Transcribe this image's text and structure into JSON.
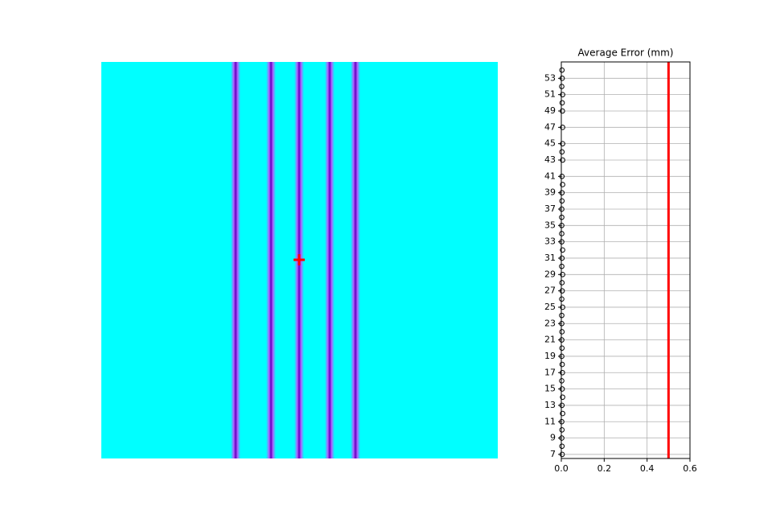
{
  "chart_data": {
    "type": "scatter",
    "title": "Average Error (mm)",
    "x": [
      0.004,
      0.003,
      0.002,
      0.003,
      0.002,
      0.003,
      0.006,
      0.004,
      0.005,
      0.004,
      0.002,
      0.002,
      0.003,
      0.002,
      0.006,
      0.004,
      0.006,
      0.003,
      0.002,
      0.002,
      0.002,
      0.002,
      0.002,
      0.003,
      0.003,
      0.006,
      0.003,
      0.006,
      0.003,
      0.006,
      0.006,
      0.005,
      0.004,
      0.006,
      0.002,
      0.004,
      0.003,
      0.006,
      0.002,
      0.003,
      0.002,
      0.002,
      0.003,
      0.002,
      0.006
    ],
    "y": [
      7,
      8,
      9,
      10,
      11,
      13,
      14,
      15,
      17,
      18,
      19,
      21,
      22,
      23,
      25,
      27,
      29,
      31,
      33,
      34,
      35,
      36,
      37,
      38,
      39,
      40,
      41,
      43,
      44,
      45,
      47,
      49,
      50,
      51,
      52,
      53,
      54,
      12,
      16,
      20,
      24,
      26,
      28,
      30,
      32
    ],
    "threshold": 0.5,
    "threshold_color": "#ff0000",
    "marker_color": "#000000",
    "xlim": [
      0,
      0.6
    ],
    "ylim": [
      6.5,
      55
    ],
    "xticks": [
      {
        "value": 0,
        "label": "0.0"
      },
      {
        "value": 0.2,
        "label": "0.2"
      },
      {
        "value": 0.4,
        "label": "0.4"
      },
      {
        "value": 0.6,
        "label": "0.6"
      }
    ],
    "yticks": [
      7,
      9,
      11,
      13,
      15,
      17,
      19,
      21,
      23,
      25,
      27,
      29,
      31,
      33,
      35,
      37,
      39,
      41,
      43,
      45,
      47,
      49,
      51,
      53
    ],
    "grid": true
  }
}
